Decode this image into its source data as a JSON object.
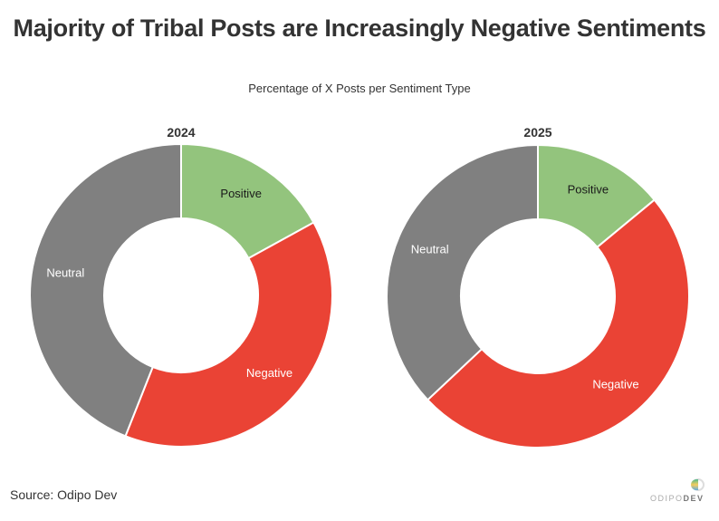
{
  "title": "Majority of Tribal Posts are Increasingly Negative Sentiments",
  "subtitle": "Percentage of X Posts per Sentiment Type",
  "source": "Source: Odipo Dev",
  "logo": {
    "text_light": "ODIPO",
    "text_bold": "DEV"
  },
  "colors": {
    "Positive": "#93c47d",
    "Negative": "#ea4335",
    "Neutral": "#808080"
  },
  "chart_data": [
    {
      "type": "pie",
      "subtype": "donut",
      "title": "2024",
      "categories": [
        "Positive",
        "Negative",
        "Neutral"
      ],
      "values": [
        17,
        39,
        44
      ],
      "unit": "%",
      "start_angle": "top, clockwise"
    },
    {
      "type": "pie",
      "subtype": "donut",
      "title": "2025",
      "categories": [
        "Positive",
        "Negative",
        "Neutral"
      ],
      "values": [
        14,
        49,
        37
      ],
      "unit": "%",
      "start_angle": "top, clockwise"
    }
  ]
}
